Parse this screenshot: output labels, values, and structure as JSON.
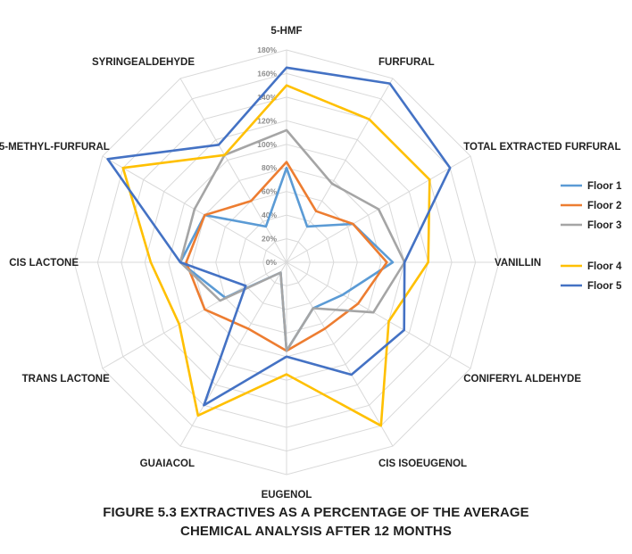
{
  "caption": {
    "line1": "FIGURE 5.3  EXTRACTIVES AS A PERCENTAGE OF THE AVERAGE",
    "line2": "CHEMICAL ANALYSIS AFTER 12 MONTHS"
  },
  "chart_data": {
    "type": "radar",
    "categories": [
      "5-HMF",
      "FURFURAL",
      "TOTAL EXTRACTED FURFURAL",
      "VANILLIN",
      "CONIFERYL  ALDEHYDE",
      "CIS ISOEUGENOL",
      "EUGENOL",
      "GUAIACOL",
      "TRANS LACTONE",
      "CIS LACTONE",
      "5-METHYL-FURFURAL",
      "SYRINGEALDEHYDE"
    ],
    "tick_labels": [
      "0%",
      "20%",
      "40%",
      "60%",
      "80%",
      "100%",
      "120%",
      "140%",
      "160%",
      "180%"
    ],
    "rlim": [
      0,
      180
    ],
    "grid": true,
    "legend_position": "right",
    "series": [
      {
        "name": "Floor 1",
        "color": "#5b9bd5",
        "values": [
          80,
          35,
          65,
          90,
          55,
          45,
          75,
          10,
          60,
          90,
          80,
          35
        ]
      },
      {
        "name": "Floor 2",
        "color": "#ed7d31",
        "values": [
          85,
          50,
          65,
          85,
          70,
          65,
          75,
          65,
          80,
          85,
          80,
          60
        ]
      },
      {
        "name": "Floor 3",
        "color": "#a5a5a5",
        "values": [
          112,
          77,
          90,
          100,
          85,
          45,
          75,
          10,
          65,
          90,
          90,
          105
        ]
      },
      {
        "name": "Floor 4",
        "color": "#ffc000",
        "values": [
          150,
          140,
          140,
          120,
          100,
          160,
          95,
          150,
          105,
          115,
          160,
          105
        ]
      },
      {
        "name": "Floor 5",
        "color": "#4472c4",
        "values": [
          165,
          175,
          160,
          100,
          115,
          110,
          80,
          140,
          40,
          90,
          175,
          115
        ]
      }
    ]
  }
}
